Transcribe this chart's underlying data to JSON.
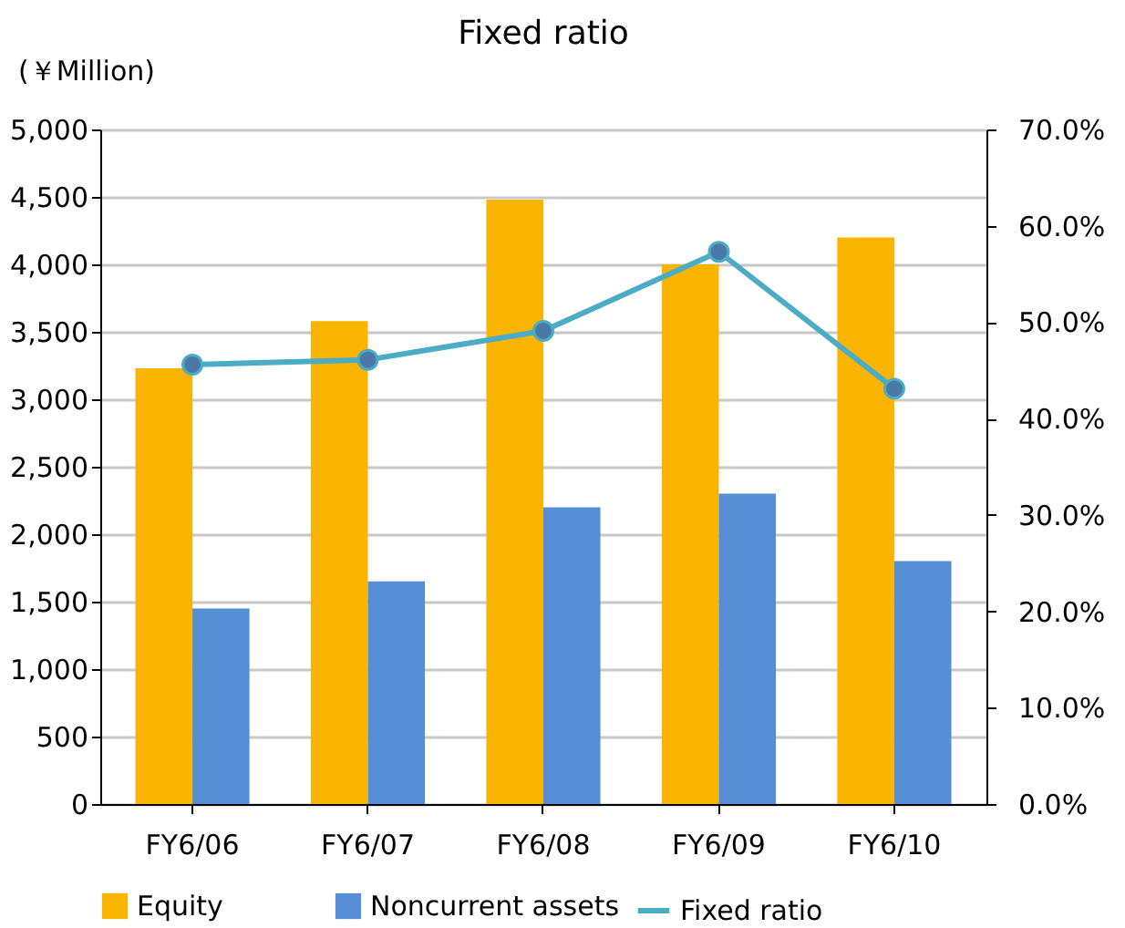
{
  "chart_data": {
    "type": "bar",
    "title": "Fixed ratio",
    "annotations": [
      "(￥Million)"
    ],
    "categories": [
      "FY6/06",
      "FY6/07",
      "FY6/08",
      "FY6/09",
      "FY6/10"
    ],
    "series": [
      {
        "name": "Equity",
        "color": "#fbb400",
        "values": [
          3230,
          3580,
          4480,
          4000,
          4200
        ]
      },
      {
        "name": "Noncurrent assets",
        "color": "#558ed5",
        "values": [
          1450,
          1650,
          2200,
          2300,
          1800
        ]
      },
      {
        "name": "Fixed ratio",
        "type": "line",
        "axis": "y2",
        "color": "#4bacc6",
        "marker": "circle",
        "values": [
          45.6,
          46.1,
          49.1,
          57.3,
          43.1
        ]
      }
    ],
    "ylim": [
      0,
      5000
    ],
    "yticks": [
      0,
      {
        "value": 500,
        "label": "500"
      },
      {
        "value": 1000,
        "label": "1,000"
      },
      {
        "value": 1500,
        "label": "1,500"
      },
      {
        "value": 2000,
        "label": "2,000"
      },
      {
        "value": 2500,
        "label": "2,500"
      },
      {
        "value": 3000,
        "label": "3,000"
      },
      {
        "value": 3500,
        "label": "3,500"
      },
      {
        "value": 4000,
        "label": "4,000"
      },
      {
        "value": 4500,
        "label": "4,500"
      },
      {
        "value": 5000,
        "label": "5,000"
      }
    ],
    "y2lim": [
      0,
      70
    ],
    "y2ticks": [
      {
        "value": 0,
        "label": "0.0%"
      },
      {
        "value": 10,
        "label": "10.0%"
      },
      {
        "value": 20,
        "label": "20.0%"
      },
      {
        "value": 30,
        "label": "30.0%"
      },
      {
        "value": 40,
        "label": "40.0%"
      },
      {
        "value": 50,
        "label": "50.0%"
      },
      {
        "value": 60,
        "label": "60.0%"
      },
      {
        "value": 70,
        "label": "70.0%"
      }
    ],
    "grid": "y",
    "legend": "bottom"
  }
}
